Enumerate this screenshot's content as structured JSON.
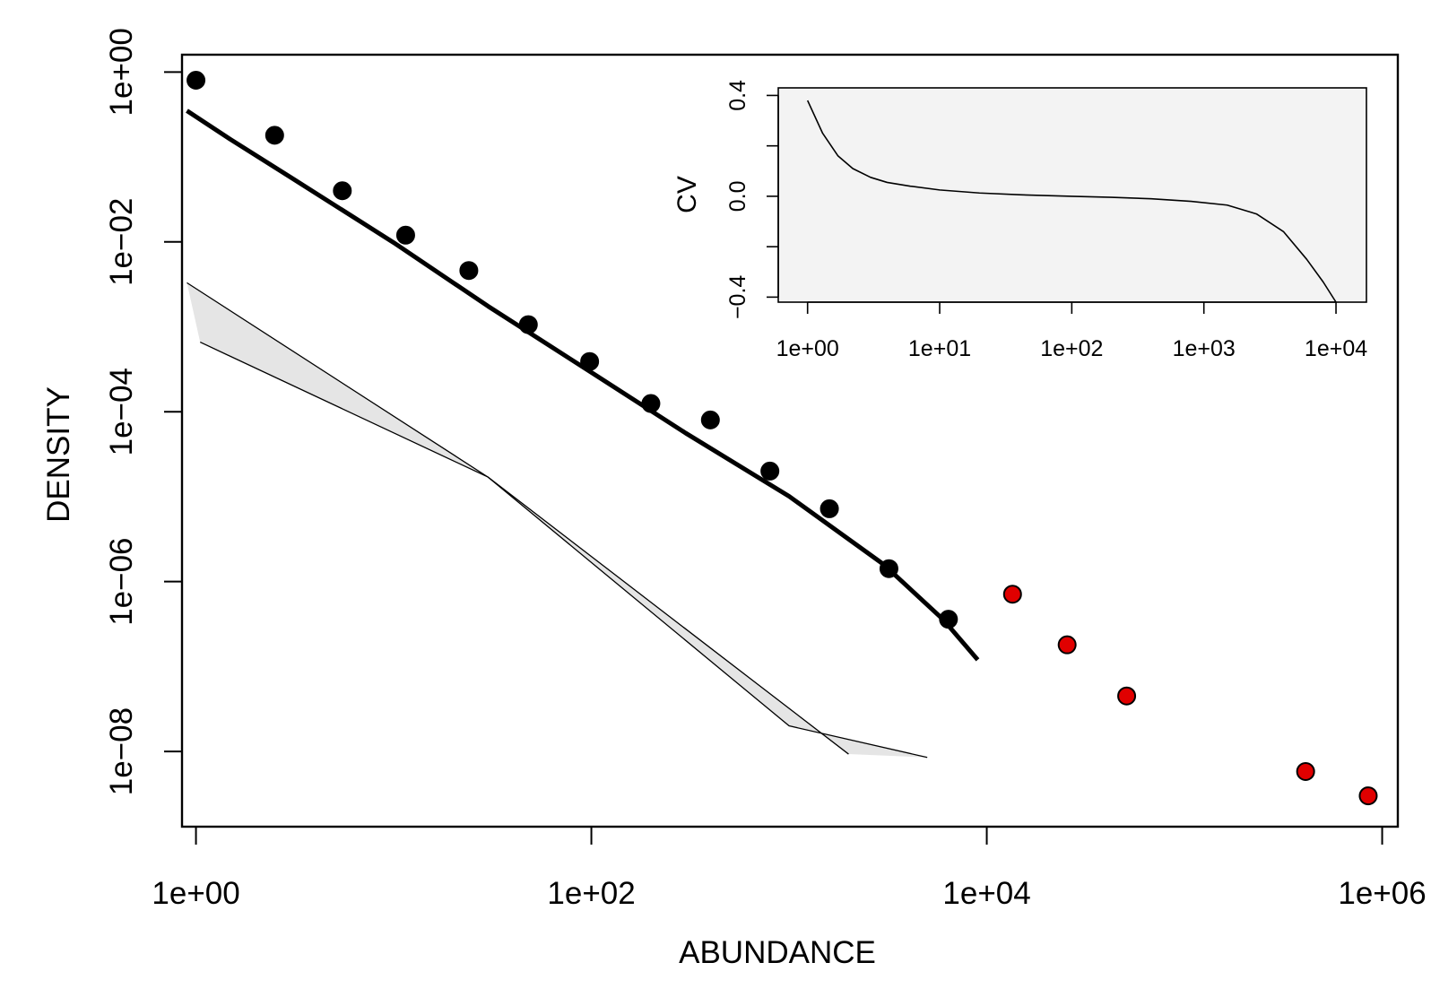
{
  "chart_data": [
    {
      "type": "scatter",
      "title": "",
      "xlabel": "ABUNDANCE",
      "ylabel": "DENSITY",
      "xscale": "log",
      "yscale": "log",
      "xlim": [
        0.85,
        1200000
      ],
      "ylim": [
        1.3e-09,
        1.6
      ],
      "xticks": [
        {
          "value": 1,
          "label": "1e+00"
        },
        {
          "value": 100,
          "label": "1e+02"
        },
        {
          "value": 10000,
          "label": "1e+04"
        },
        {
          "value": 1000000,
          "label": "1e+06"
        }
      ],
      "yticks": [
        {
          "value": 1,
          "label": "1e+00"
        },
        {
          "value": 0.01,
          "label": "1e−02"
        },
        {
          "value": 0.0001,
          "label": "1e−04"
        },
        {
          "value": 1e-06,
          "label": "1e−06"
        },
        {
          "value": 1e-08,
          "label": "1e−08"
        }
      ],
      "grid": false,
      "series": [
        {
          "kind": "points",
          "color": "#000000",
          "points": [
            [
              1.0,
              0.8
            ],
            [
              2.5,
              0.18
            ],
            [
              5.5,
              0.04
            ],
            [
              11.5,
              0.012
            ],
            [
              24,
              0.0046
            ],
            [
              48,
              0.00106
            ],
            [
              98,
              0.00039
            ],
            [
              200,
              0.000125
            ],
            [
              400,
              8e-05
            ],
            [
              800,
              2e-05
            ],
            [
              1600,
              7.2e-06
            ],
            [
              3200,
              1.42e-06
            ],
            [
              6400,
              3.6e-07
            ]
          ]
        },
        {
          "kind": "points",
          "color": "#e00000",
          "points": [
            [
              13500,
              7.1e-07
            ],
            [
              25500,
              1.8e-07
            ],
            [
              51000,
              4.5e-08
            ],
            [
              410000,
              5.8e-09
            ],
            [
              850000,
              3e-09
            ]
          ]
        },
        {
          "kind": "line",
          "color": "#000000",
          "points": [
            [
              0.9,
              0.35
            ],
            [
              1.5,
              0.16
            ],
            [
              3,
              0.058
            ],
            [
              10,
              0.0098
            ],
            [
              30,
              0.00175
            ],
            [
              100,
              0.00029
            ],
            [
              300,
              5.6e-05
            ],
            [
              1000,
              1.01e-05
            ],
            [
              3000,
              1.6e-06
            ],
            [
              6000,
              3.6e-07
            ],
            [
              9000,
              1.2e-07
            ]
          ]
        },
        {
          "kind": "band",
          "color": "#e5e5e5",
          "upper": [
            [
              0.9,
              0.0033
            ],
            [
              30,
              1.7e-05
            ],
            [
              1000,
              2e-08
            ],
            [
              5000,
              8.5e-09
            ]
          ],
          "lower": [
            [
              1.05,
              0.00066
            ],
            [
              30,
              1.7e-05
            ],
            [
              2000,
              9.3e-09
            ]
          ]
        }
      ]
    },
    {
      "type": "line",
      "title": "",
      "xlabel": "",
      "ylabel": "CV",
      "xscale": "log",
      "yscale": "linear",
      "xlim": [
        0.6,
        17000
      ],
      "ylim": [
        -0.42,
        0.43
      ],
      "background": "#f3f3f3",
      "xticks": [
        {
          "value": 1,
          "label": "1e+00"
        },
        {
          "value": 10,
          "label": "1e+01"
        },
        {
          "value": 100,
          "label": "1e+02"
        },
        {
          "value": 1000,
          "label": "1e+03"
        },
        {
          "value": 10000,
          "label": "1e+04"
        }
      ],
      "yticks": [
        {
          "value": 0.4,
          "label": "0.4"
        },
        {
          "value": 0.2,
          "label": ""
        },
        {
          "value": 0.0,
          "label": "0.0"
        },
        {
          "value": -0.2,
          "label": ""
        },
        {
          "value": -0.4,
          "label": "−0.4"
        }
      ],
      "series": [
        {
          "color": "#000000",
          "points": [
            [
              1.0,
              0.38
            ],
            [
              1.3,
              0.25
            ],
            [
              1.7,
              0.16
            ],
            [
              2.2,
              0.11
            ],
            [
              3,
              0.075
            ],
            [
              4,
              0.055
            ],
            [
              6,
              0.04
            ],
            [
              10,
              0.025
            ],
            [
              20,
              0.013
            ],
            [
              40,
              0.006
            ],
            [
              100,
              0.0
            ],
            [
              200,
              -0.004
            ],
            [
              400,
              -0.01
            ],
            [
              800,
              -0.02
            ],
            [
              1500,
              -0.035
            ],
            [
              2500,
              -0.07
            ],
            [
              4000,
              -0.14
            ],
            [
              6000,
              -0.25
            ],
            [
              8000,
              -0.34
            ],
            [
              10000,
              -0.42
            ]
          ]
        }
      ]
    }
  ]
}
